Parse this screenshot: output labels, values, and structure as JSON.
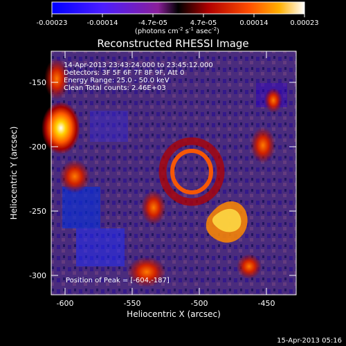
{
  "colorbar": {
    "ticks": [
      "-0.00023",
      "-0.00014",
      "-4.7e-05",
      "4.7e-05",
      "0.00014",
      "0.00023"
    ],
    "units_prefix": "(photons cm",
    "units_exp1": "-2",
    "units_mid": " s",
    "units_exp2": "-1",
    "units_mid2": " asec",
    "units_exp3": "-2",
    "units_suffix": ")"
  },
  "plot": {
    "title": "Reconstructed RHESSI Image",
    "xlabel": "Heliocentric X (arcsec)",
    "ylabel": "Heliocentric Y (arcsec)",
    "x_ticks": [
      "-600",
      "-550",
      "-500",
      "-450"
    ],
    "y_ticks": [
      "-150",
      "-200",
      "-250",
      "-300"
    ]
  },
  "overlay": {
    "time_range": "14-Apr-2013 23:43:24.000 to 23:45:12.000",
    "detectors": "Detectors: 3F 5F 6F 7F 8F 9F, Att 0",
    "energy": "Energy Range: 25.0 - 50.0 keV",
    "clean": "Clean    Total counts: 2.46E+03",
    "peak": "Position of Peak = [-604,-187]"
  },
  "footer": {
    "timestamp": "15-Apr-2013 05:16"
  }
}
